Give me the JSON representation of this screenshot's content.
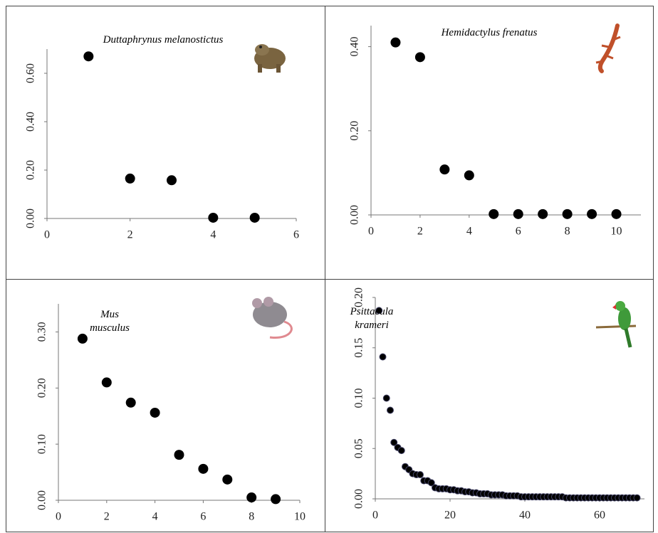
{
  "chart_data": [
    {
      "type": "scatter",
      "title": "Duttaphrynus melanostictus",
      "color": "#000000",
      "x": [
        1,
        2,
        3,
        4,
        5
      ],
      "values": [
        0.67,
        0.165,
        0.158,
        0.003,
        0.003
      ],
      "xlim": [
        0,
        6
      ],
      "ylim": [
        0,
        0.7
      ],
      "xticks": [
        0,
        2,
        4,
        6
      ],
      "yticks": [
        {
          "value": 0,
          "label": "0.00"
        },
        {
          "value": 0.2,
          "label": "0.20"
        },
        {
          "value": 0.4,
          "label": "0.40"
        },
        {
          "value": 0.6,
          "label": "0.60"
        }
      ]
    },
    {
      "type": "scatter",
      "title": "Hemidactylus frenatus",
      "color": "#000000",
      "x": [
        1,
        2,
        3,
        4,
        5,
        6,
        7,
        8,
        9,
        10
      ],
      "values": [
        0.41,
        0.375,
        0.108,
        0.094,
        0.002,
        0.002,
        0.002,
        0.002,
        0.002,
        0.002
      ],
      "xlim": [
        0,
        11
      ],
      "ylim": [
        0,
        0.45
      ],
      "xticks": [
        0,
        2,
        4,
        6,
        8,
        10
      ],
      "yticks": [
        {
          "value": 0,
          "label": "0.00"
        },
        {
          "value": 0.2,
          "label": "0.20"
        },
        {
          "value": 0.4,
          "label": "0.40"
        }
      ]
    },
    {
      "type": "scatter",
      "title": "Mus musculus",
      "color": "#000000",
      "x": [
        1,
        2,
        3,
        4,
        5,
        6,
        7,
        8,
        9
      ],
      "values": [
        0.288,
        0.21,
        0.174,
        0.156,
        0.081,
        0.056,
        0.037,
        0.005,
        0.002
      ],
      "xlim": [
        0,
        10
      ],
      "ylim": [
        0,
        0.35
      ],
      "xticks": [
        0,
        2,
        4,
        6,
        8,
        10
      ],
      "yticks": [
        {
          "value": 0,
          "label": "0.00"
        },
        {
          "value": 0.1,
          "label": "0.10"
        },
        {
          "value": 0.2,
          "label": "0.20"
        },
        {
          "value": 0.3,
          "label": "0.30"
        }
      ]
    },
    {
      "type": "scatter",
      "title": "Psittacula krameri",
      "color": "#000000",
      "x": [
        1,
        2,
        3,
        4,
        5,
        6,
        7,
        8,
        9,
        10,
        11,
        12,
        13,
        14,
        15,
        16,
        17,
        18,
        19,
        20,
        21,
        22,
        23,
        24,
        25,
        26,
        27,
        28,
        29,
        30,
        31,
        32,
        33,
        34,
        35,
        36,
        37,
        38,
        39,
        40,
        41,
        42,
        43,
        44,
        45,
        46,
        47,
        48,
        49,
        50,
        51,
        52,
        53,
        54,
        55,
        56,
        57,
        58,
        59,
        60,
        61,
        62,
        63,
        64,
        65,
        66,
        67,
        68,
        69,
        70
      ],
      "values": [
        0.187,
        0.141,
        0.1,
        0.088,
        0.056,
        0.051,
        0.048,
        0.032,
        0.029,
        0.025,
        0.024,
        0.024,
        0.018,
        0.018,
        0.016,
        0.011,
        0.01,
        0.01,
        0.01,
        0.009,
        0.009,
        0.008,
        0.008,
        0.007,
        0.007,
        0.006,
        0.006,
        0.005,
        0.005,
        0.005,
        0.004,
        0.004,
        0.004,
        0.004,
        0.003,
        0.003,
        0.003,
        0.003,
        0.002,
        0.002,
        0.002,
        0.002,
        0.002,
        0.002,
        0.002,
        0.002,
        0.002,
        0.002,
        0.002,
        0.002,
        0.001,
        0.001,
        0.001,
        0.001,
        0.001,
        0.001,
        0.001,
        0.001,
        0.001,
        0.001,
        0.001,
        0.001,
        0.001,
        0.001,
        0.001,
        0.001,
        0.001,
        0.001,
        0.001,
        0.001
      ],
      "xlim": [
        0,
        72
      ],
      "ylim": [
        0,
        0.2
      ],
      "xticks": [
        0,
        20,
        40,
        60
      ],
      "yticks": [
        {
          "value": 0,
          "label": "0.00"
        },
        {
          "value": 0.05,
          "label": "0.05"
        },
        {
          "value": 0.1,
          "label": "0.10"
        },
        {
          "value": 0.15,
          "label": "0.15"
        },
        {
          "value": 0.2,
          "label": "0.20"
        }
      ]
    }
  ]
}
